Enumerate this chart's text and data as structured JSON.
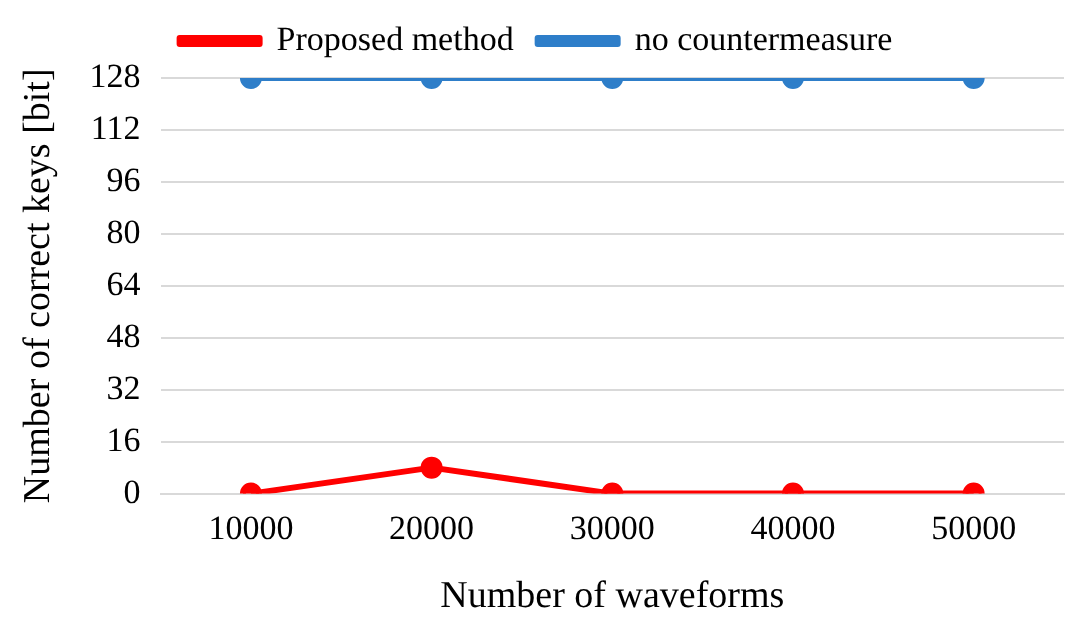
{
  "chart_data": {
    "type": "line",
    "xlabel": "Number of waveforms",
    "ylabel": "Number of correct keys [bit]",
    "categories": [
      "10000",
      "20000",
      "30000",
      "40000",
      "50000"
    ],
    "series": [
      {
        "name": "Proposed method",
        "color": "#ff0000",
        "values": [
          0,
          8,
          0,
          0,
          0
        ]
      },
      {
        "name": "no countermeasure",
        "color": "#2e7ec9",
        "values": [
          128,
          128,
          128,
          128,
          128
        ]
      }
    ],
    "ylim": [
      0,
      128
    ],
    "yticks": [
      0,
      16,
      32,
      48,
      64,
      80,
      96,
      112,
      128
    ],
    "grid": "y",
    "legend": "top",
    "marker": "circle",
    "line_style": "solid"
  }
}
